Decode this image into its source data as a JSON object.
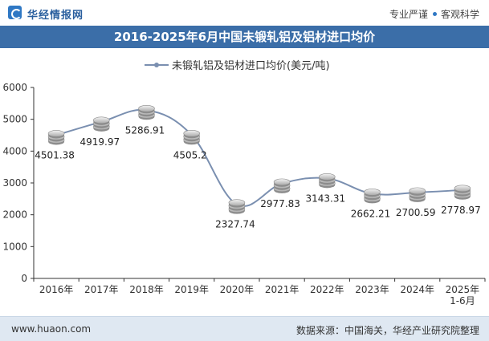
{
  "header": {
    "logo_text": "华经情报网",
    "slogan_left": "专业严谨",
    "slogan_right": "客观科学"
  },
  "footer": {
    "website": "www.huaon.com",
    "source": "数据来源：中国海关，华经产业研究院整理"
  },
  "colors": {
    "line": "#7a8fb0",
    "title_bg": "#3b6ea8",
    "footer_bg": "#dfe8f2",
    "accent": "#2f78c4"
  },
  "chart_data": {
    "type": "line",
    "title": "2016-2025年6月中国未锻轧铝及铝材进口均价",
    "legend": "未锻轧铝及铝材进口均价(美元/吨)",
    "legend_position": "top-center",
    "categories": [
      "2016年",
      "2017年",
      "2018年",
      "2019年",
      "2020年",
      "2021年",
      "2022年",
      "2023年",
      "2024年",
      "2025年\n1-6月"
    ],
    "values": [
      4501.38,
      4919.97,
      5286.91,
      4505.2,
      2327.74,
      2977.83,
      3143.31,
      2662.21,
      2700.59,
      2778.97
    ],
    "value_labels": [
      "4501.38",
      "4919.97",
      "5286.91",
      "4505.2",
      "2327.74",
      "2977.83",
      "3143.31",
      "2662.21",
      "2700.59",
      "2778.97"
    ],
    "ylim": [
      0,
      6000
    ],
    "yticks": [
      0,
      1000,
      2000,
      3000,
      4000,
      5000,
      6000
    ],
    "xlabel": "",
    "ylabel": "",
    "grid": false
  }
}
